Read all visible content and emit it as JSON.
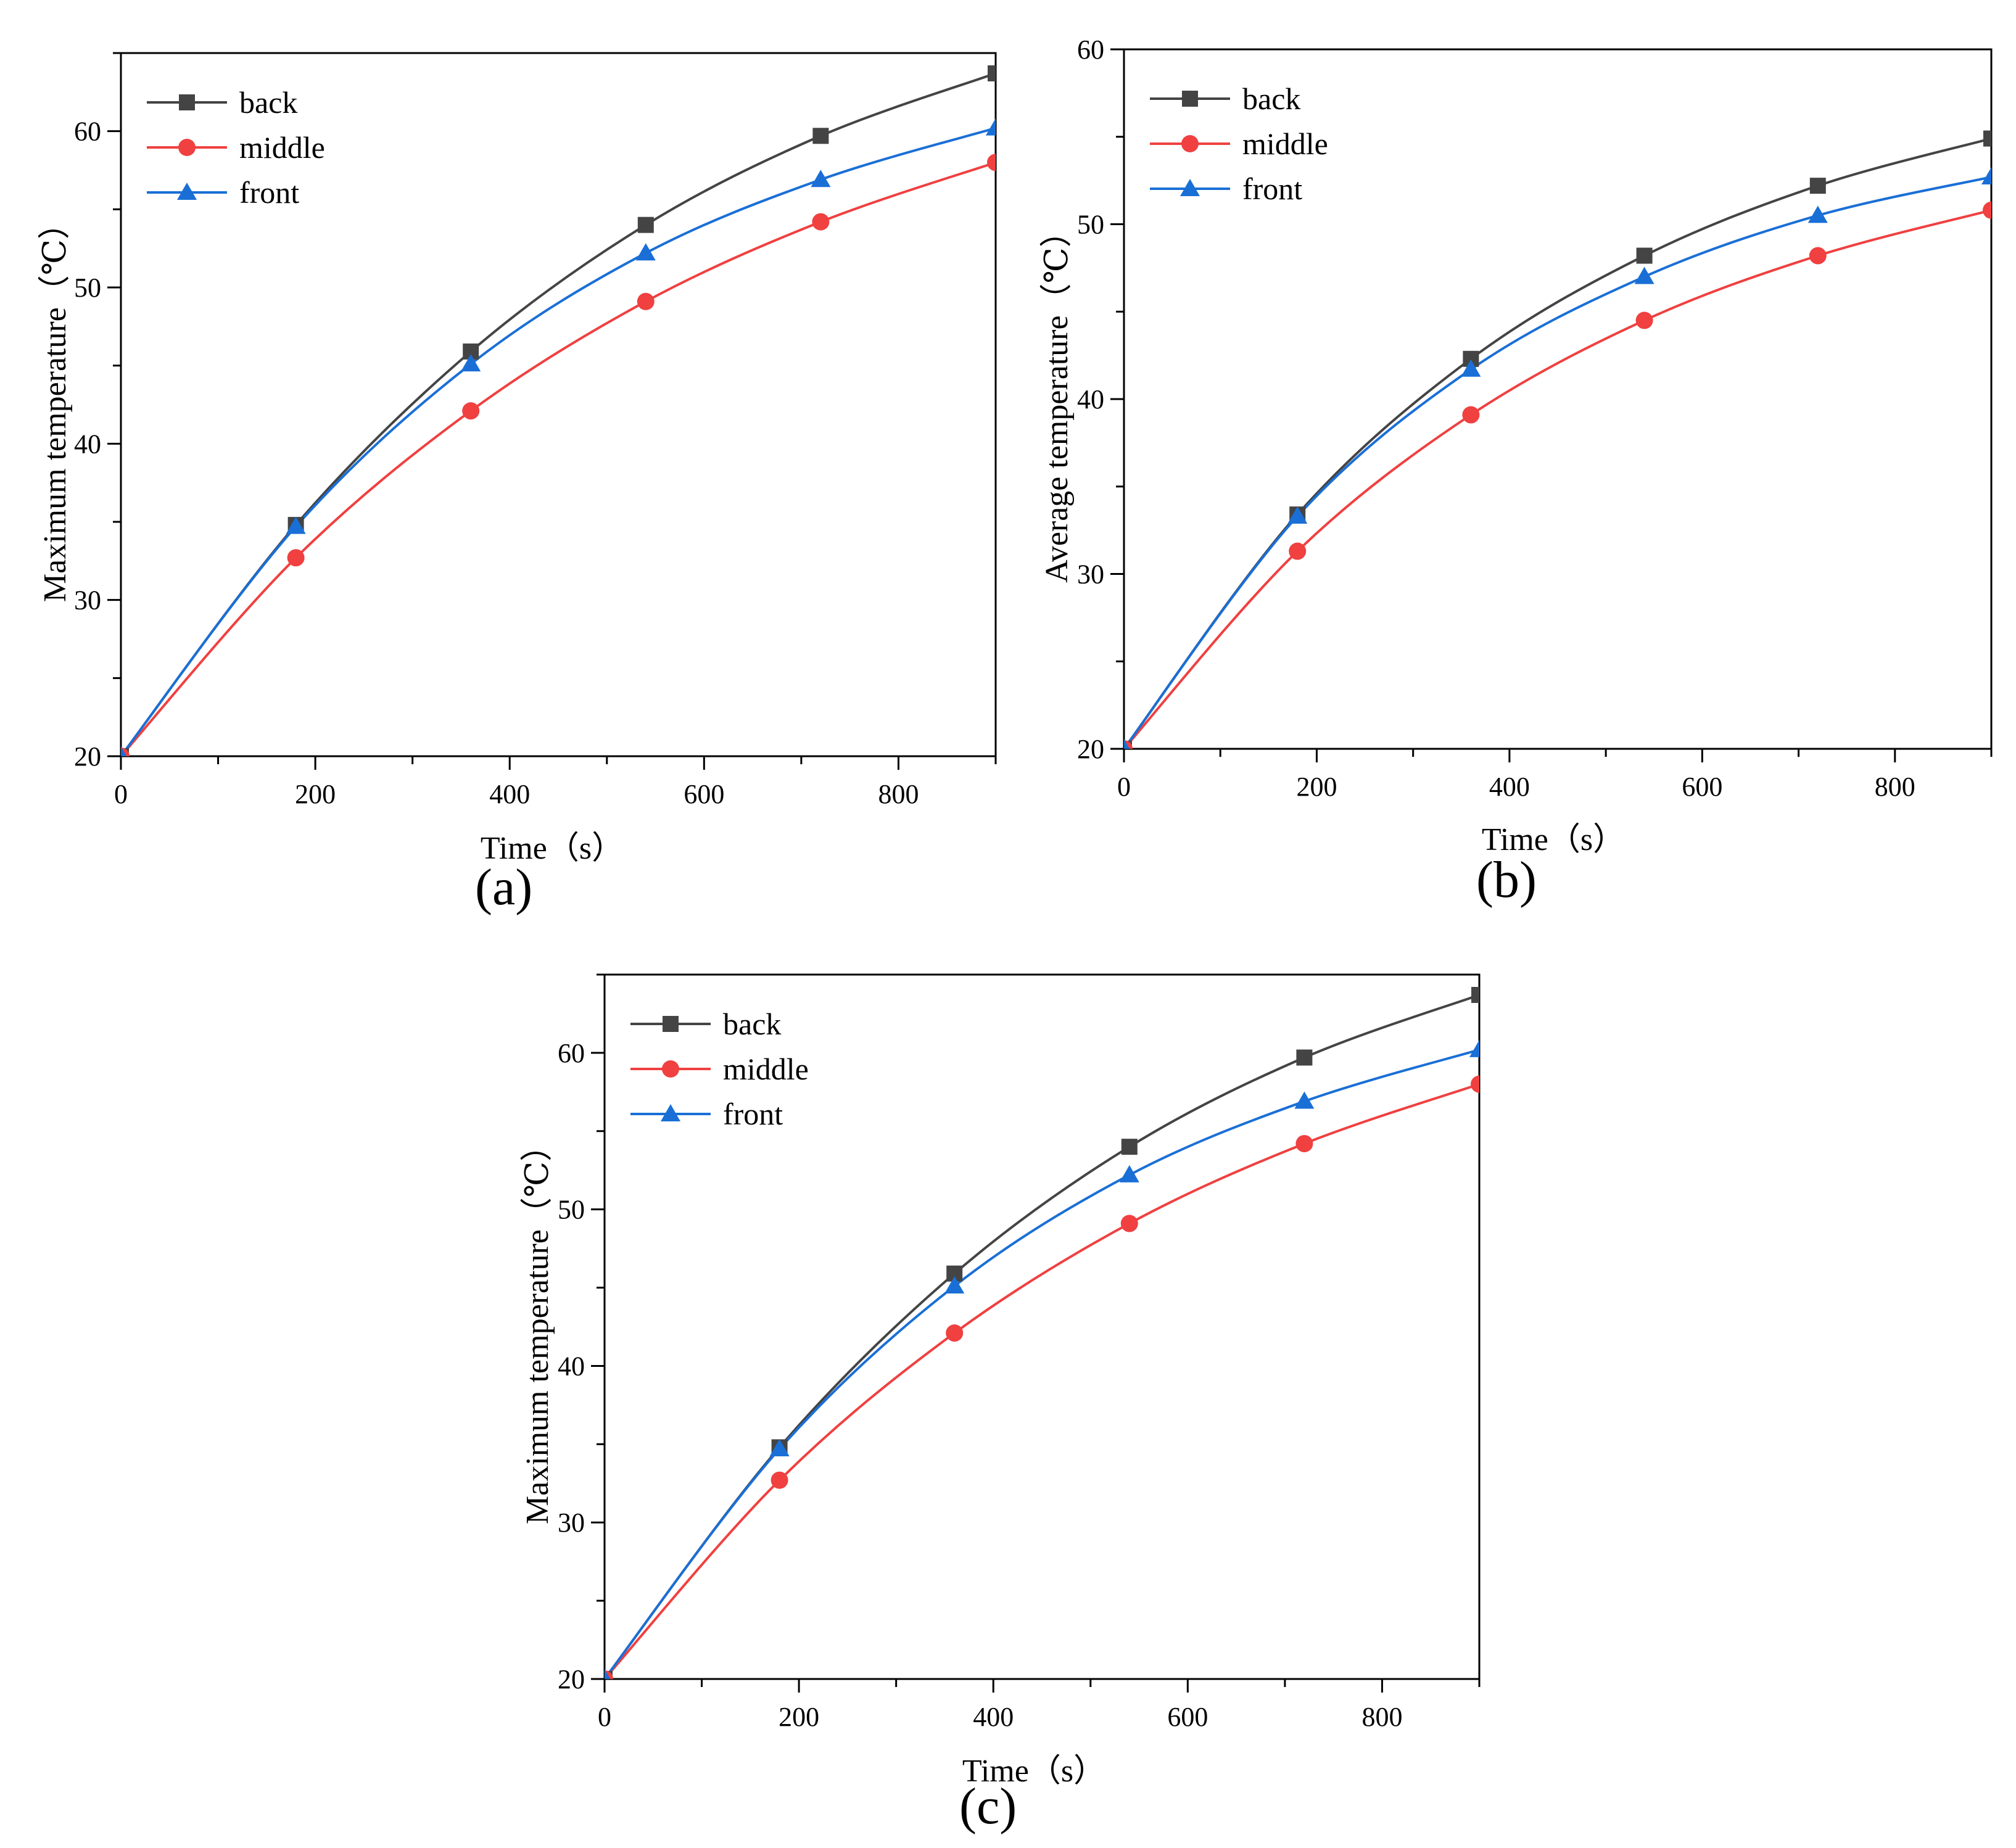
{
  "chart_data": [
    {
      "type": "line",
      "panel_label": "(a)",
      "xlabel": "Time（s）",
      "ylabel": "Maximum temperature（℃）",
      "xlim": [
        0,
        900
      ],
      "ylim": [
        20,
        65
      ],
      "xticks": [
        0,
        200,
        400,
        600,
        800
      ],
      "xtick_labels": [
        "0",
        "200",
        "400",
        "600",
        "800"
      ],
      "yticks": [
        20,
        30,
        40,
        50,
        60
      ],
      "ytick_labels": [
        "20",
        "30",
        "40",
        "50",
        "60"
      ],
      "legend_position": "top-left",
      "x": [
        0,
        180,
        360,
        540,
        720,
        900
      ],
      "series": [
        {
          "name": "back",
          "marker": "square",
          "color": "#444444",
          "values": [
            20,
            34.8,
            45.9,
            54.0,
            59.7,
            63.7
          ]
        },
        {
          "name": "middle",
          "marker": "circle",
          "color": "#f04040",
          "values": [
            20,
            32.7,
            42.1,
            49.1,
            54.2,
            58.0
          ]
        },
        {
          "name": "front",
          "marker": "triangle",
          "color": "#1a6fd6",
          "values": [
            20,
            34.7,
            45.1,
            52.2,
            56.9,
            60.2
          ]
        }
      ]
    },
    {
      "type": "line",
      "panel_label": "(b)",
      "xlabel": "Time（s）",
      "ylabel": "Average temperature（℃）",
      "xlim": [
        0,
        900
      ],
      "ylim": [
        20,
        60
      ],
      "xticks": [
        0,
        200,
        400,
        600,
        800
      ],
      "xtick_labels": [
        "0",
        "200",
        "400",
        "600",
        "800"
      ],
      "yticks": [
        20,
        30,
        40,
        50,
        60
      ],
      "ytick_labels": [
        "20",
        "30",
        "40",
        "50",
        "60"
      ],
      "legend_position": "top-left",
      "x": [
        0,
        180,
        360,
        540,
        720,
        900
      ],
      "series": [
        {
          "name": "back",
          "marker": "square",
          "color": "#444444",
          "values": [
            20,
            33.4,
            42.3,
            48.2,
            52.2,
            54.9
          ]
        },
        {
          "name": "middle",
          "marker": "circle",
          "color": "#f04040",
          "values": [
            20,
            31.3,
            39.1,
            44.5,
            48.2,
            50.8
          ]
        },
        {
          "name": "front",
          "marker": "triangle",
          "color": "#1a6fd6",
          "values": [
            20,
            33.3,
            41.7,
            47.0,
            50.5,
            52.7
          ]
        }
      ]
    },
    {
      "type": "line",
      "panel_label": "(c)",
      "xlabel": "Time（s）",
      "ylabel": "Maximum temperature（℃）",
      "xlim": [
        0,
        900
      ],
      "ylim": [
        20,
        65
      ],
      "xticks": [
        0,
        200,
        400,
        600,
        800
      ],
      "xtick_labels": [
        "0",
        "200",
        "400",
        "600",
        "800"
      ],
      "yticks": [
        20,
        30,
        40,
        50,
        60
      ],
      "ytick_labels": [
        "20",
        "30",
        "40",
        "50",
        "60"
      ],
      "legend_position": "top-left",
      "x": [
        0,
        180,
        360,
        540,
        720,
        900
      ],
      "series": [
        {
          "name": "back",
          "marker": "square",
          "color": "#444444",
          "values": [
            20,
            34.8,
            45.9,
            54.0,
            59.7,
            63.7
          ]
        },
        {
          "name": "middle",
          "marker": "circle",
          "color": "#f04040",
          "values": [
            20,
            32.7,
            42.1,
            49.1,
            54.2,
            58.0
          ]
        },
        {
          "name": "front",
          "marker": "triangle",
          "color": "#1a6fd6",
          "values": [
            20,
            34.7,
            45.1,
            52.2,
            56.9,
            60.2
          ]
        }
      ]
    }
  ]
}
